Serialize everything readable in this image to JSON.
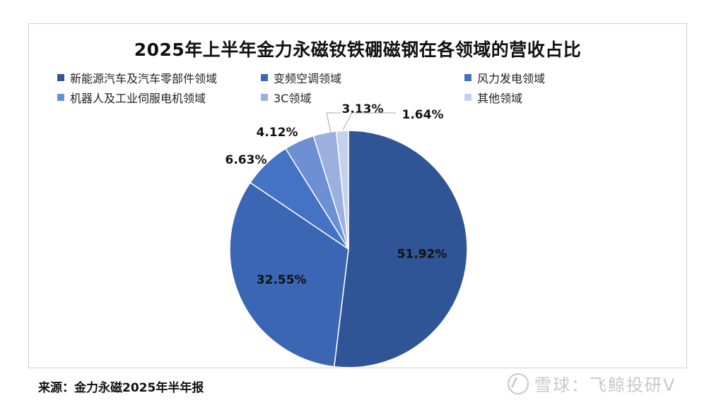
{
  "chart_data": {
    "type": "pie",
    "title": "2025年上半年金力永磁钕铁硼磁钢在各领域的营收占比",
    "categories": [
      "新能源汽车及汽车零部件领域",
      "变频空调领域",
      "风力发电领域",
      "机器人及工业伺服电机领域",
      "3C领域",
      "其他领域"
    ],
    "values": [
      51.92,
      32.55,
      6.63,
      4.12,
      3.13,
      1.64
    ],
    "labels": [
      "51.92%",
      "32.55%",
      "6.63%",
      "4.12%",
      "3.13%",
      "1.64%"
    ],
    "colors": [
      "#2f5597",
      "#3a66b3",
      "#4472c4",
      "#6d8fd4",
      "#9cb0e0",
      "#c5d0ee"
    ],
    "legend_placement": "top"
  },
  "source_note": "来源：金力永磁2025年半年报",
  "watermark": {
    "text": "雪球：飞鲸投研V",
    "icon": "xueqiu-logo-icon"
  }
}
